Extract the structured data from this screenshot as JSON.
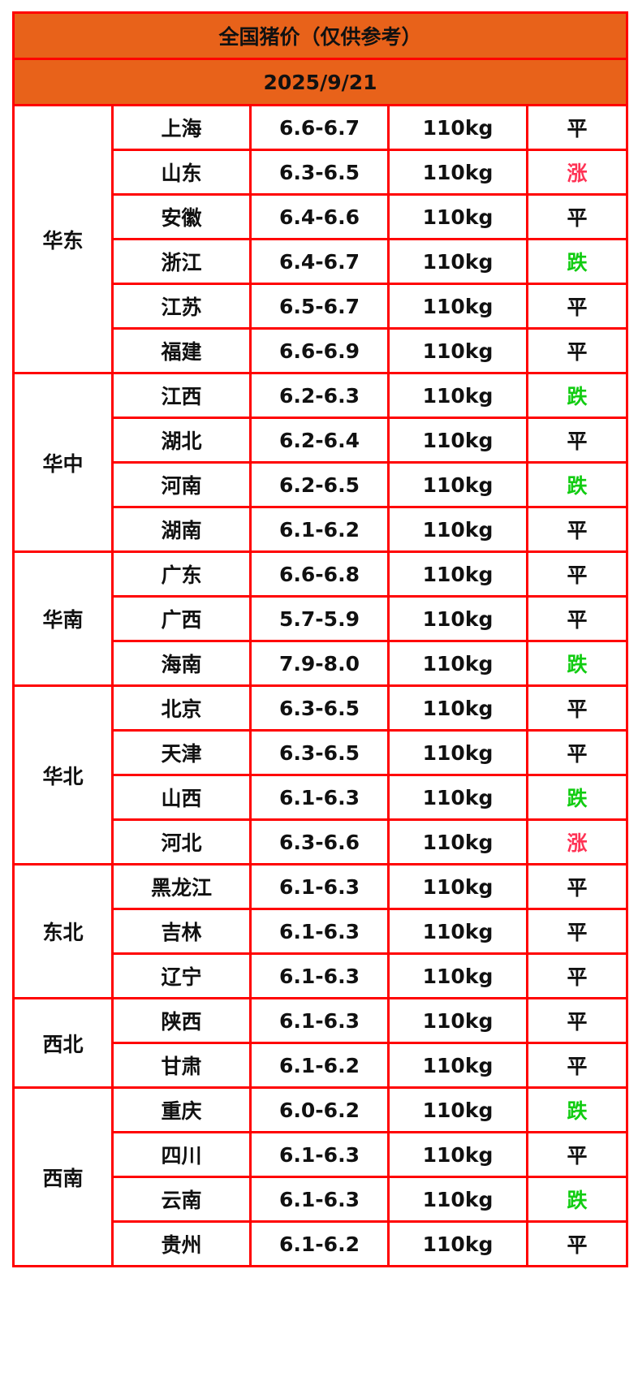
{
  "title": "全国猪价（仅供参考）",
  "date": "2025/9/21",
  "colors": {
    "header_bg": "#e8621a",
    "border": "#ff0000",
    "up": "#ff3355",
    "down": "#11cc11",
    "flat": "#111111"
  },
  "regions": [
    {
      "name": "华东",
      "rows": [
        {
          "province": "上海",
          "price": "6.6-6.7",
          "weight": "110kg",
          "trend": "平"
        },
        {
          "province": "山东",
          "price": "6.3-6.5",
          "weight": "110kg",
          "trend": "涨"
        },
        {
          "province": "安徽",
          "price": "6.4-6.6",
          "weight": "110kg",
          "trend": "平"
        },
        {
          "province": "浙江",
          "price": "6.4-6.7",
          "weight": "110kg",
          "trend": "跌"
        },
        {
          "province": "江苏",
          "price": "6.5-6.7",
          "weight": "110kg",
          "trend": "平"
        },
        {
          "province": "福建",
          "price": "6.6-6.9",
          "weight": "110kg",
          "trend": "平"
        }
      ]
    },
    {
      "name": "华中",
      "rows": [
        {
          "province": "江西",
          "price": "6.2-6.3",
          "weight": "110kg",
          "trend": "跌"
        },
        {
          "province": "湖北",
          "price": "6.2-6.4",
          "weight": "110kg",
          "trend": "平"
        },
        {
          "province": "河南",
          "price": "6.2-6.5",
          "weight": "110kg",
          "trend": "跌"
        },
        {
          "province": "湖南",
          "price": "6.1-6.2",
          "weight": "110kg",
          "trend": "平"
        }
      ]
    },
    {
      "name": "华南",
      "rows": [
        {
          "province": "广东",
          "price": "6.6-6.8",
          "weight": "110kg",
          "trend": "平"
        },
        {
          "province": "广西",
          "price": "5.7-5.9",
          "weight": "110kg",
          "trend": "平"
        },
        {
          "province": "海南",
          "price": "7.9-8.0",
          "weight": "110kg",
          "trend": "跌"
        }
      ]
    },
    {
      "name": "华北",
      "rows": [
        {
          "province": "北京",
          "price": "6.3-6.5",
          "weight": "110kg",
          "trend": "平"
        },
        {
          "province": "天津",
          "price": "6.3-6.5",
          "weight": "110kg",
          "trend": "平"
        },
        {
          "province": "山西",
          "price": "6.1-6.3",
          "weight": "110kg",
          "trend": "跌"
        },
        {
          "province": "河北",
          "price": "6.3-6.6",
          "weight": "110kg",
          "trend": "涨"
        }
      ]
    },
    {
      "name": "东北",
      "rows": [
        {
          "province": "黑龙江",
          "price": "6.1-6.3",
          "weight": "110kg",
          "trend": "平"
        },
        {
          "province": "吉林",
          "price": "6.1-6.3",
          "weight": "110kg",
          "trend": "平"
        },
        {
          "province": "辽宁",
          "price": "6.1-6.3",
          "weight": "110kg",
          "trend": "平"
        }
      ]
    },
    {
      "name": "西北",
      "rows": [
        {
          "province": "陕西",
          "price": "6.1-6.3",
          "weight": "110kg",
          "trend": "平"
        },
        {
          "province": "甘肃",
          "price": "6.1-6.2",
          "weight": "110kg",
          "trend": "平"
        }
      ]
    },
    {
      "name": "西南",
      "rows": [
        {
          "province": "重庆",
          "price": "6.0-6.2",
          "weight": "110kg",
          "trend": "跌"
        },
        {
          "province": "四川",
          "price": "6.1-6.3",
          "weight": "110kg",
          "trend": "平"
        },
        {
          "province": "云南",
          "price": "6.1-6.3",
          "weight": "110kg",
          "trend": "跌"
        },
        {
          "province": "贵州",
          "price": "6.1-6.2",
          "weight": "110kg",
          "trend": "平"
        }
      ]
    }
  ]
}
